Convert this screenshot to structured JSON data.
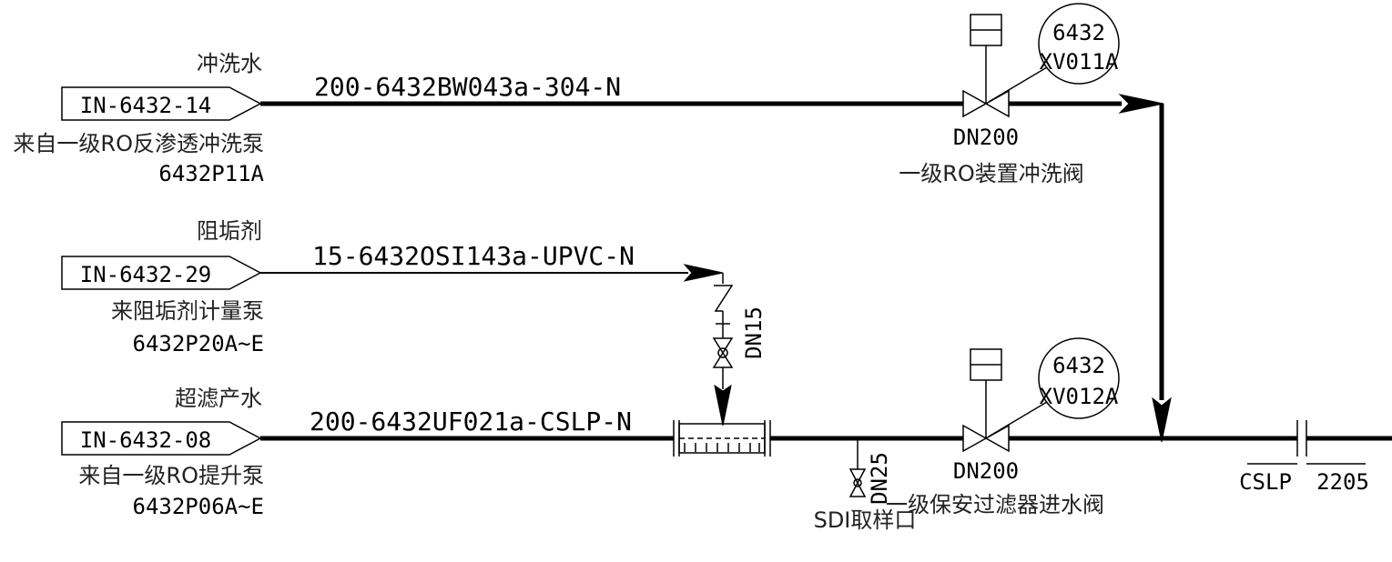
{
  "inlets": [
    {
      "tag": "IN-6432-14",
      "medium": "冲洗水",
      "pipe": "200-6432BW043a-304-N",
      "source": "来自一级RO反渗透冲洗泵",
      "equipment": "6432P11A"
    },
    {
      "tag": "IN-6432-29",
      "medium": "阻垢剂",
      "pipe": "15-6432OSI143a-UPVC-N",
      "source": "来阻垢剂计量泵",
      "equipment": "6432P20A~E"
    },
    {
      "tag": "IN-6432-08",
      "medium": "超滤产水",
      "pipe": "200-6432UF021a-CSLP-N",
      "source": "来自一级RO提升泵",
      "equipment": "6432P06A~E"
    }
  ],
  "valves": {
    "flush": {
      "size": "DN200",
      "name": "一级RO装置冲洗阀",
      "instr_loop": "6432",
      "instr_tag": "XV011A"
    },
    "inlet": {
      "size": "DN200",
      "name": "一级保安过滤器进水阀",
      "instr_loop": "6432",
      "instr_tag": "XV012A"
    }
  },
  "dosing": {
    "size": "DN15"
  },
  "sampling": {
    "size": "DN25",
    "name": "SDI取样口"
  },
  "spec_break": {
    "left": "CSLP",
    "right": "2205"
  }
}
